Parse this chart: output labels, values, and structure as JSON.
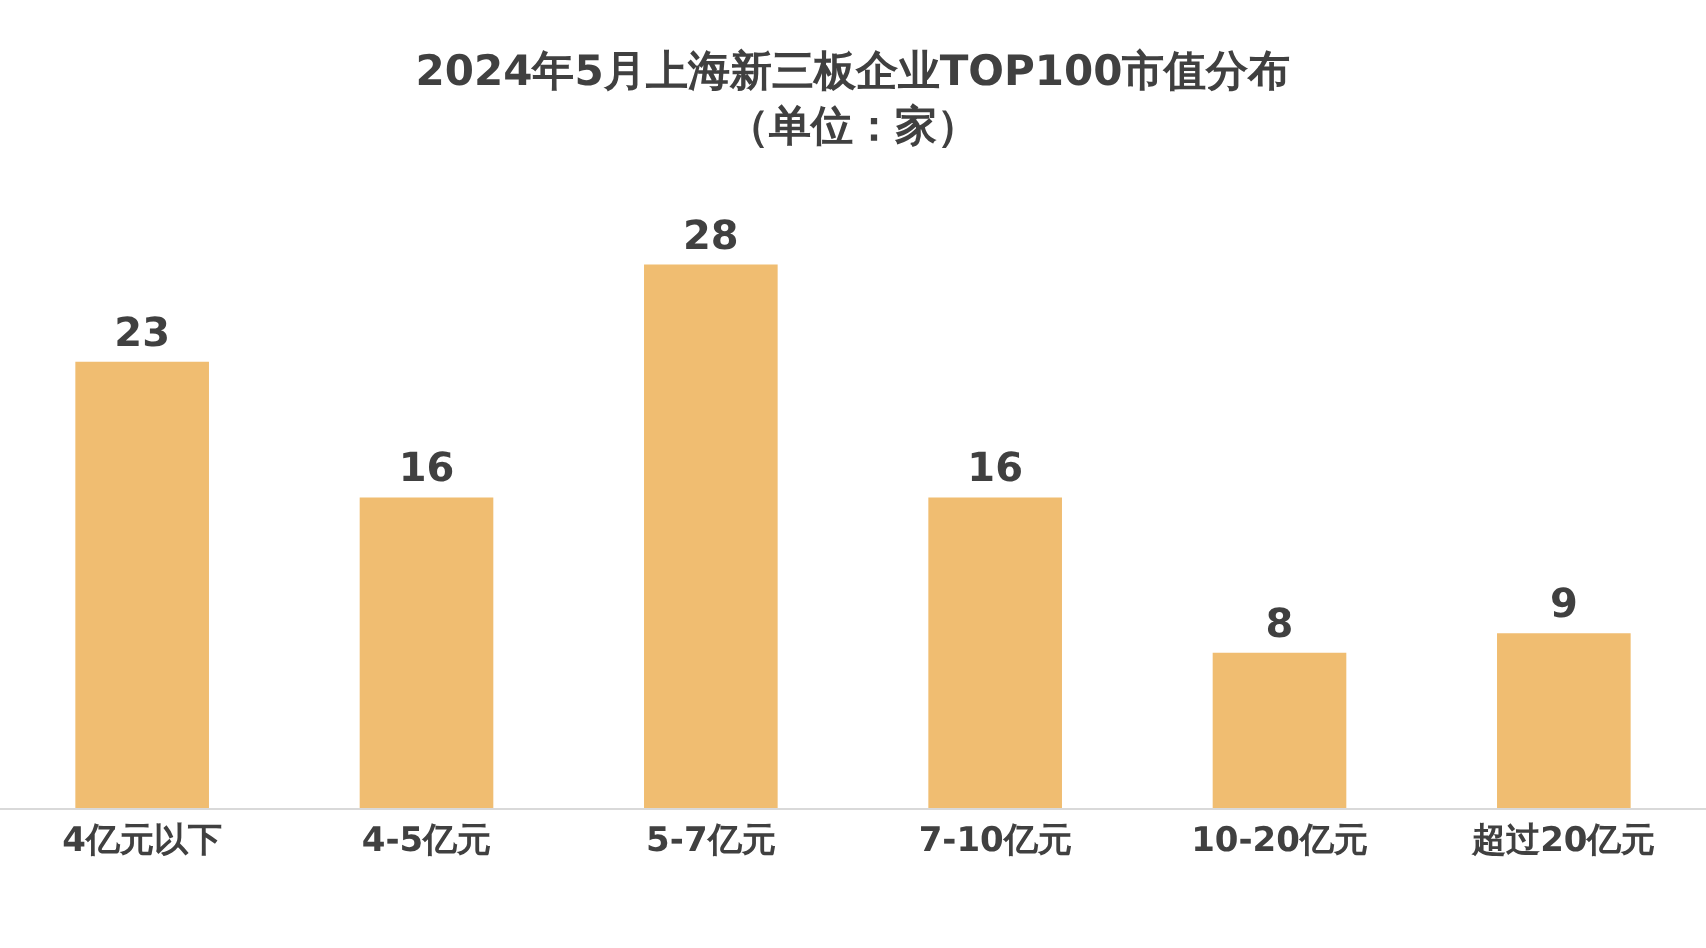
{
  "chart_data": {
    "type": "bar",
    "title": "2024年5月上海新三板企业TOP100市值分布",
    "subtitle": "（单位：家）",
    "categories": [
      "4亿元以下",
      "4-5亿元",
      "5-7亿元",
      "7-10亿元",
      "10-20亿元",
      "超过20亿元"
    ],
    "values": [
      23,
      16,
      28,
      16,
      8,
      9
    ],
    "color": "#f0bd71",
    "data_labels": true,
    "grid": false,
    "legend": false,
    "tick_labels": "x"
  }
}
